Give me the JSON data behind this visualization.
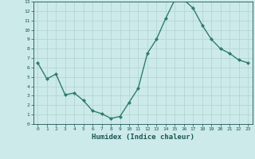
{
  "x": [
    0,
    1,
    2,
    3,
    4,
    5,
    6,
    7,
    8,
    9,
    10,
    11,
    12,
    13,
    14,
    15,
    16,
    17,
    18,
    19,
    20,
    21,
    22,
    23
  ],
  "y": [
    6.5,
    4.8,
    5.3,
    3.1,
    3.3,
    2.5,
    1.4,
    1.1,
    0.6,
    0.8,
    2.3,
    3.8,
    7.5,
    9.0,
    11.2,
    13.2,
    13.2,
    12.3,
    10.5,
    9.0,
    8.0,
    7.5,
    6.8,
    6.5
  ],
  "line_color": "#2e7d6e",
  "marker": "D",
  "marker_size": 2,
  "bg_color": "#cdeaea",
  "grid_color": "#b5d5d5",
  "xlabel": "Humidex (Indice chaleur)",
  "xlim": [
    -0.5,
    23.5
  ],
  "ylim": [
    0,
    13
  ],
  "xticks": [
    0,
    1,
    2,
    3,
    4,
    5,
    6,
    7,
    8,
    9,
    10,
    11,
    12,
    13,
    14,
    15,
    16,
    17,
    18,
    19,
    20,
    21,
    22,
    23
  ],
  "yticks": [
    0,
    1,
    2,
    3,
    4,
    5,
    6,
    7,
    8,
    9,
    10,
    11,
    12,
    13
  ],
  "tick_color": "#1a5555",
  "label_color": "#1a5555",
  "spine_color": "#1a5555"
}
